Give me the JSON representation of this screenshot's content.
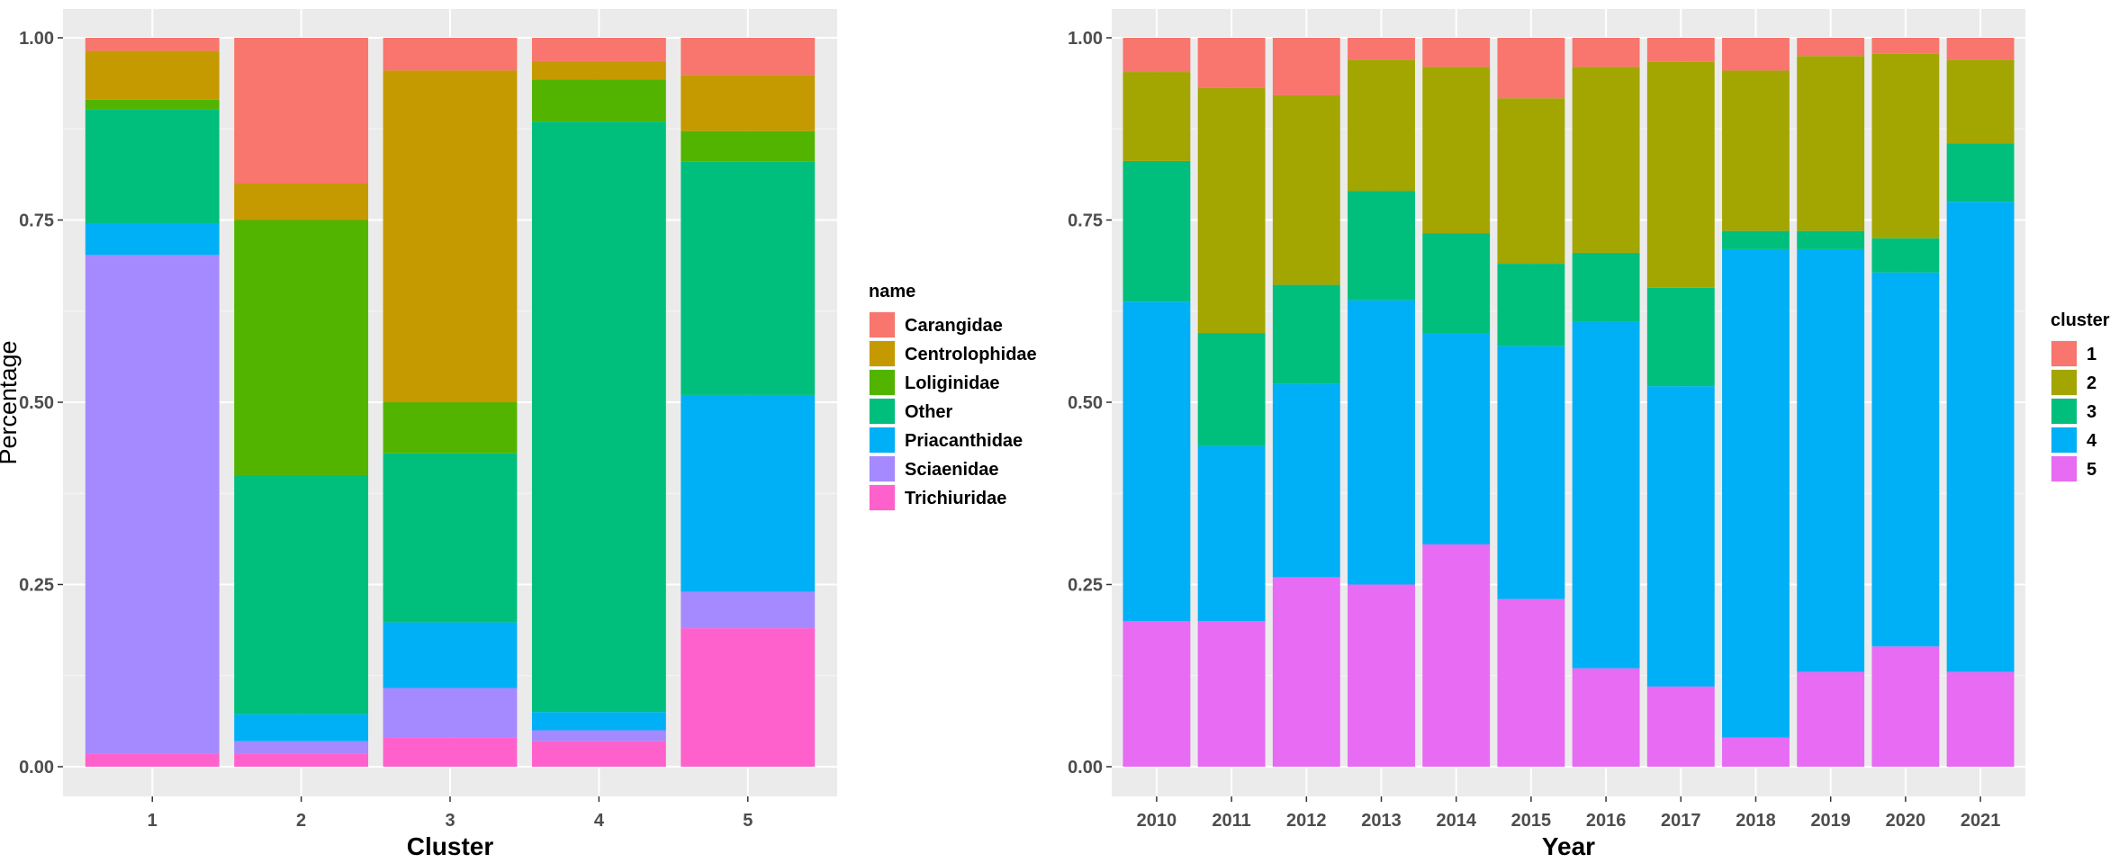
{
  "chart_data": [
    {
      "type": "bar",
      "stacked": true,
      "title": "",
      "xlabel": "Cluster",
      "ylabel": "Percentage",
      "ylim": [
        0,
        1
      ],
      "yticks": [
        "0.00",
        "0.25",
        "0.50",
        "0.75",
        "1.00"
      ],
      "categories": [
        "1",
        "2",
        "3",
        "4",
        "5"
      ],
      "legend_title": "name",
      "series": [
        {
          "name": "Trichiuridae",
          "color": "#FF61CC",
          "values": [
            0.018,
            0.018,
            0.04,
            0.035,
            0.19
          ]
        },
        {
          "name": "Sciaenidae",
          "color": "#A58AFF",
          "values": [
            0.684,
            0.017,
            0.068,
            0.015,
            0.05
          ]
        },
        {
          "name": "Priacanthidae",
          "color": "#00B0F6",
          "values": [
            0.043,
            0.037,
            0.09,
            0.025,
            0.27
          ]
        },
        {
          "name": "Other",
          "color": "#00BF7D",
          "values": [
            0.157,
            0.328,
            0.232,
            0.81,
            0.32
          ]
        },
        {
          "name": "Loliginidae",
          "color": "#53B400",
          "values": [
            0.013,
            0.35,
            0.07,
            0.058,
            0.042
          ]
        },
        {
          "name": "Centrolophidae",
          "color": "#C49A00",
          "values": [
            0.067,
            0.05,
            0.455,
            0.025,
            0.077
          ]
        },
        {
          "name": "Carangidae",
          "color": "#F8766D",
          "values": [
            0.018,
            0.2,
            0.045,
            0.032,
            0.051
          ]
        }
      ],
      "legend_order": [
        "Carangidae",
        "Centrolophidae",
        "Loliginidae",
        "Other",
        "Priacanthidae",
        "Sciaenidae",
        "Trichiuridae"
      ]
    },
    {
      "type": "bar",
      "stacked": true,
      "title": "",
      "xlabel": "Year",
      "ylabel": "",
      "ylim": [
        0,
        1
      ],
      "yticks": [
        "0.00",
        "0.25",
        "0.50",
        "0.75",
        "1.00"
      ],
      "categories": [
        "2010",
        "2011",
        "2012",
        "2013",
        "2014",
        "2015",
        "2016",
        "2017",
        "2018",
        "2019",
        "2020",
        "2021"
      ],
      "legend_title": "cluster",
      "series": [
        {
          "name": "5",
          "color": "#E76BF3",
          "values": [
            0.2,
            0.2,
            0.26,
            0.25,
            0.305,
            0.23,
            0.135,
            0.11,
            0.04,
            0.13,
            0.165,
            0.13
          ]
        },
        {
          "name": "4",
          "color": "#00B0F6",
          "values": [
            0.438,
            0.24,
            0.265,
            0.39,
            0.29,
            0.347,
            0.475,
            0.412,
            0.67,
            0.58,
            0.513,
            0.645
          ]
        },
        {
          "name": "3",
          "color": "#00BF7D",
          "values": [
            0.193,
            0.155,
            0.136,
            0.15,
            0.137,
            0.113,
            0.095,
            0.135,
            0.025,
            0.025,
            0.047,
            0.08
          ]
        },
        {
          "name": "2",
          "color": "#A3A500",
          "values": [
            0.122,
            0.336,
            0.26,
            0.18,
            0.228,
            0.227,
            0.255,
            0.31,
            0.22,
            0.24,
            0.253,
            0.115
          ]
        },
        {
          "name": "1",
          "color": "#F8766D",
          "values": [
            0.047,
            0.069,
            0.079,
            0.03,
            0.04,
            0.083,
            0.04,
            0.033,
            0.045,
            0.025,
            0.022,
            0.03
          ]
        }
      ],
      "legend_order": [
        "1",
        "2",
        "3",
        "4",
        "5"
      ]
    }
  ]
}
